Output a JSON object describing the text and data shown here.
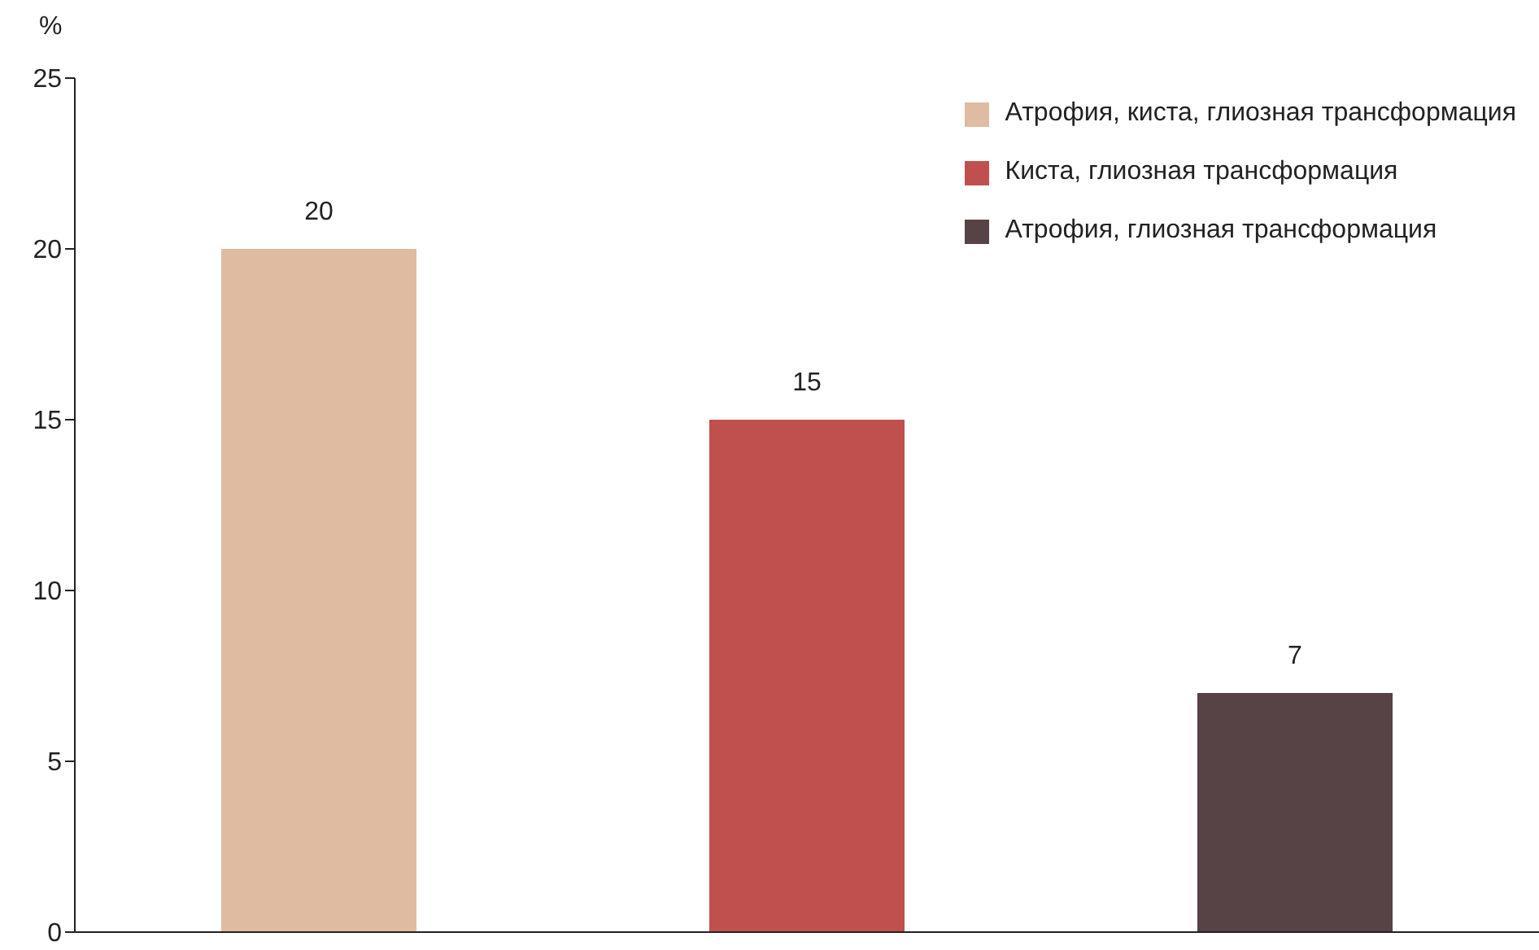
{
  "chart_data": {
    "type": "bar",
    "ylabel": "%",
    "categories": [
      null,
      null,
      null
    ],
    "series": [
      {
        "name": "Атрофия, киста, глиозная трансформация",
        "color": "#dfbca1",
        "values": [
          20,
          null,
          null
        ]
      },
      {
        "name": "Киста, глиозная трансформация",
        "color": "#c0504d",
        "values": [
          null,
          15,
          null
        ]
      },
      {
        "name": "Атрофия, глиозная трансформация",
        "color": "#574245",
        "values": [
          null,
          null,
          7
        ]
      }
    ],
    "ylim": [
      0,
      25
    ],
    "yticks": [
      0,
      5,
      10,
      15,
      20,
      25
    ],
    "data_labels": true,
    "legend": "top right",
    "grid": false
  }
}
